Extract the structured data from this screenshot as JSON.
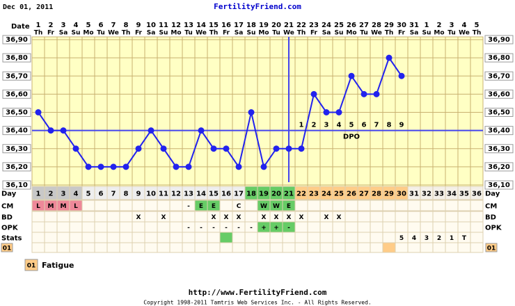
{
  "chart_data": {
    "type": "line",
    "header_date": "Dec 01, 2011",
    "site": "FertilityFriend.com",
    "date_label": "Date",
    "categories": [
      1,
      2,
      3,
      4,
      5,
      6,
      7,
      8,
      9,
      10,
      11,
      12,
      13,
      14,
      15,
      16,
      17,
      18,
      19,
      20,
      21,
      22,
      23,
      24,
      25,
      26,
      27,
      28,
      29,
      30,
      31,
      1,
      2,
      3,
      4,
      5
    ],
    "weekdays": [
      "Th",
      "Fr",
      "Sa",
      "Su",
      "Mo",
      "Tu",
      "We",
      "Th",
      "Fr",
      "Sa",
      "Su",
      "Mo",
      "Tu",
      "We",
      "Th",
      "Fr",
      "Sa",
      "Su",
      "Mo",
      "Tu",
      "We",
      "Th",
      "Fr",
      "Sa",
      "Su",
      "Mo",
      "Tu",
      "We",
      "Th",
      "Fr",
      "Sa",
      "Su",
      "Mo",
      "Tu",
      "We",
      "Th"
    ],
    "series": [
      {
        "color": "#2222ee",
        "values": [
          36.5,
          36.4,
          36.4,
          36.3,
          36.2,
          36.2,
          36.2,
          36.2,
          36.3,
          36.4,
          36.3,
          36.2,
          36.2,
          36.4,
          36.3,
          36.3,
          36.2,
          36.5,
          36.2,
          36.3,
          36.3,
          36.3,
          36.6,
          36.5,
          36.5,
          36.7,
          36.6,
          36.6,
          36.8,
          36.7,
          null,
          null,
          null,
          null,
          null,
          null
        ]
      }
    ],
    "ylim": [
      36.1,
      36.9
    ],
    "yticks": [
      {
        "value": 36.9,
        "label": "36,90"
      },
      {
        "value": 36.8,
        "label": "36,80"
      },
      {
        "value": 36.7,
        "label": "36,70"
      },
      {
        "value": 36.6,
        "label": "36,60"
      },
      {
        "value": 36.5,
        "label": "36,50"
      },
      {
        "value": 36.4,
        "label": "36,40"
      },
      {
        "value": 36.3,
        "label": "36,30"
      },
      {
        "value": 36.2,
        "label": "36,20"
      },
      {
        "value": 36.1,
        "label": "36,10"
      }
    ],
    "grid": true,
    "coverline": 36.4,
    "ovulation_day": 21,
    "dpo": {
      "label": "DPO",
      "values": [
        1,
        2,
        3,
        4,
        5,
        6,
        7,
        8,
        9
      ]
    },
    "rows": [
      {
        "label": "Day",
        "label_right": true,
        "cells": [
          1,
          2,
          3,
          4,
          5,
          6,
          7,
          8,
          9,
          10,
          11,
          12,
          13,
          14,
          15,
          16,
          17,
          18,
          19,
          20,
          21,
          22,
          23,
          24,
          25,
          26,
          27,
          28,
          29,
          30,
          31,
          32,
          33,
          34,
          35,
          36
        ],
        "colors": [
          "#c8c8c8",
          "#c8c8c8",
          "#c8c8c8",
          "#c8c8c8",
          "#eeeeee",
          "#eeeeee",
          "#eeeeee",
          "#eeeeee",
          "#eeeeee",
          "#eeeeee",
          "#eeeeee",
          "#eeeeee",
          "#eeeeee",
          "#eeeeee",
          "#eeeeee",
          "#eeeeee",
          "#eeeeee",
          "#66cc66",
          "#66cc66",
          "#66cc66",
          "#66cc66",
          "#ffcc88",
          "#ffcc88",
          "#ffcc88",
          "#ffcc88",
          "#ffcc88",
          "#ffcc88",
          "#ffcc88",
          "#ffcc88",
          "#ffcc88",
          "#f4f0e8",
          "#f4f0e8",
          "#f4f0e8",
          "#f4f0e8",
          "#f4f0e8",
          "#f4f0e8"
        ]
      },
      {
        "label": "CM",
        "label_right": true,
        "cells": [
          "L",
          "M",
          "M",
          "L",
          null,
          null,
          null,
          null,
          null,
          null,
          null,
          null,
          "-",
          "E",
          "E",
          null,
          "C",
          null,
          "W",
          "W",
          "E",
          null,
          null,
          null,
          null,
          null,
          null,
          null,
          null,
          null,
          null,
          null,
          null,
          null,
          null,
          null
        ],
        "colors": [
          "#ee8899",
          "#ee8899",
          "#ee8899",
          "#ee8899",
          null,
          null,
          null,
          null,
          null,
          null,
          null,
          null,
          null,
          "#66cc66",
          "#66cc66",
          null,
          null,
          null,
          "#66cc66",
          "#66cc66",
          "#66cc66",
          null,
          null,
          null,
          null,
          null,
          null,
          null,
          null,
          null,
          null,
          null,
          null,
          null,
          null,
          null
        ]
      },
      {
        "label": "BD",
        "label_right": true,
        "cells": [
          null,
          null,
          null,
          null,
          null,
          null,
          null,
          null,
          "X",
          null,
          "X",
          null,
          null,
          null,
          "X",
          "X",
          "X",
          null,
          "X",
          "X",
          "X",
          "X",
          null,
          "X",
          "X",
          null,
          null,
          null,
          null,
          null,
          null,
          null,
          null,
          null,
          null,
          null
        ]
      },
      {
        "label": "OPK",
        "label_right": true,
        "cells": [
          null,
          null,
          null,
          null,
          null,
          null,
          null,
          null,
          null,
          null,
          null,
          null,
          "-",
          "-",
          "-",
          "-",
          "-",
          "-",
          "+",
          "+",
          "-",
          null,
          null,
          null,
          null,
          null,
          null,
          null,
          null,
          null,
          null,
          null,
          null,
          null,
          null,
          null
        ],
        "colors": [
          null,
          null,
          null,
          null,
          null,
          null,
          null,
          null,
          null,
          null,
          null,
          null,
          null,
          null,
          null,
          null,
          null,
          null,
          "#66cc66",
          "#66cc66",
          "#66cc66",
          null,
          null,
          null,
          null,
          null,
          null,
          null,
          null,
          null,
          null,
          null,
          null,
          null,
          null,
          null
        ]
      },
      {
        "label": "Stats",
        "label_right": false,
        "cells": [
          null,
          null,
          null,
          null,
          null,
          null,
          null,
          null,
          null,
          null,
          null,
          null,
          null,
          null,
          null,
          null,
          null,
          null,
          null,
          null,
          null,
          null,
          null,
          null,
          null,
          null,
          null,
          null,
          null,
          5,
          4,
          3,
          2,
          1,
          "T",
          null
        ],
        "colors": [
          null,
          null,
          null,
          null,
          null,
          null,
          null,
          null,
          null,
          null,
          null,
          null,
          null,
          null,
          null,
          "#66cc66",
          null,
          null,
          null,
          null,
          null,
          null,
          null,
          null,
          null,
          null,
          null,
          null,
          null,
          null,
          null,
          null,
          null,
          null,
          null,
          null
        ]
      },
      {
        "label": "01",
        "label_right": true,
        "label_color": "#ffcc88",
        "colors": [
          null,
          null,
          null,
          null,
          null,
          null,
          null,
          null,
          null,
          null,
          null,
          null,
          null,
          null,
          null,
          null,
          null,
          null,
          null,
          null,
          null,
          null,
          null,
          null,
          null,
          null,
          null,
          null,
          "#ffcc88",
          null,
          null,
          null,
          null,
          null,
          null,
          null
        ]
      }
    ],
    "legend": [
      {
        "code": "01",
        "text": "Fatigue",
        "color": "#ffcc88"
      }
    ],
    "footer_url": "http://www.FertilityFriend.com",
    "copyright": "Copyright 1998-2011 Tamtris Web Services Inc. - All Rights Reserved."
  }
}
